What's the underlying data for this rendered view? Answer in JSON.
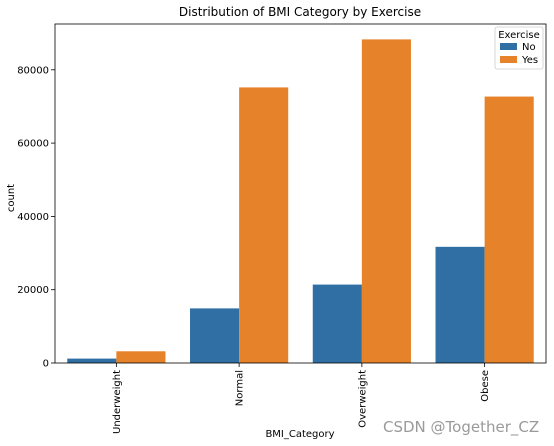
{
  "chart_data": {
    "type": "bar",
    "title": "Distribution of BMI Category by Exercise",
    "xlabel": "BMI_Category",
    "ylabel": "count",
    "categories": [
      "Underweight",
      "Normal",
      "Overweight",
      "Obese"
    ],
    "series": [
      {
        "name": "No",
        "color": "#2f6fa3",
        "values": [
          1200,
          14900,
          21400,
          31700
        ]
      },
      {
        "name": "Yes",
        "color": "#e6832a",
        "values": [
          3200,
          75200,
          88300,
          72700
        ]
      }
    ],
    "ylim": [
      0,
      92500
    ],
    "yticks": [
      0,
      20000,
      40000,
      60000,
      80000
    ],
    "grid": false,
    "legend": {
      "title": "Exercise",
      "placement": "top-right"
    }
  },
  "watermark": "CSDN @Together_CZ"
}
